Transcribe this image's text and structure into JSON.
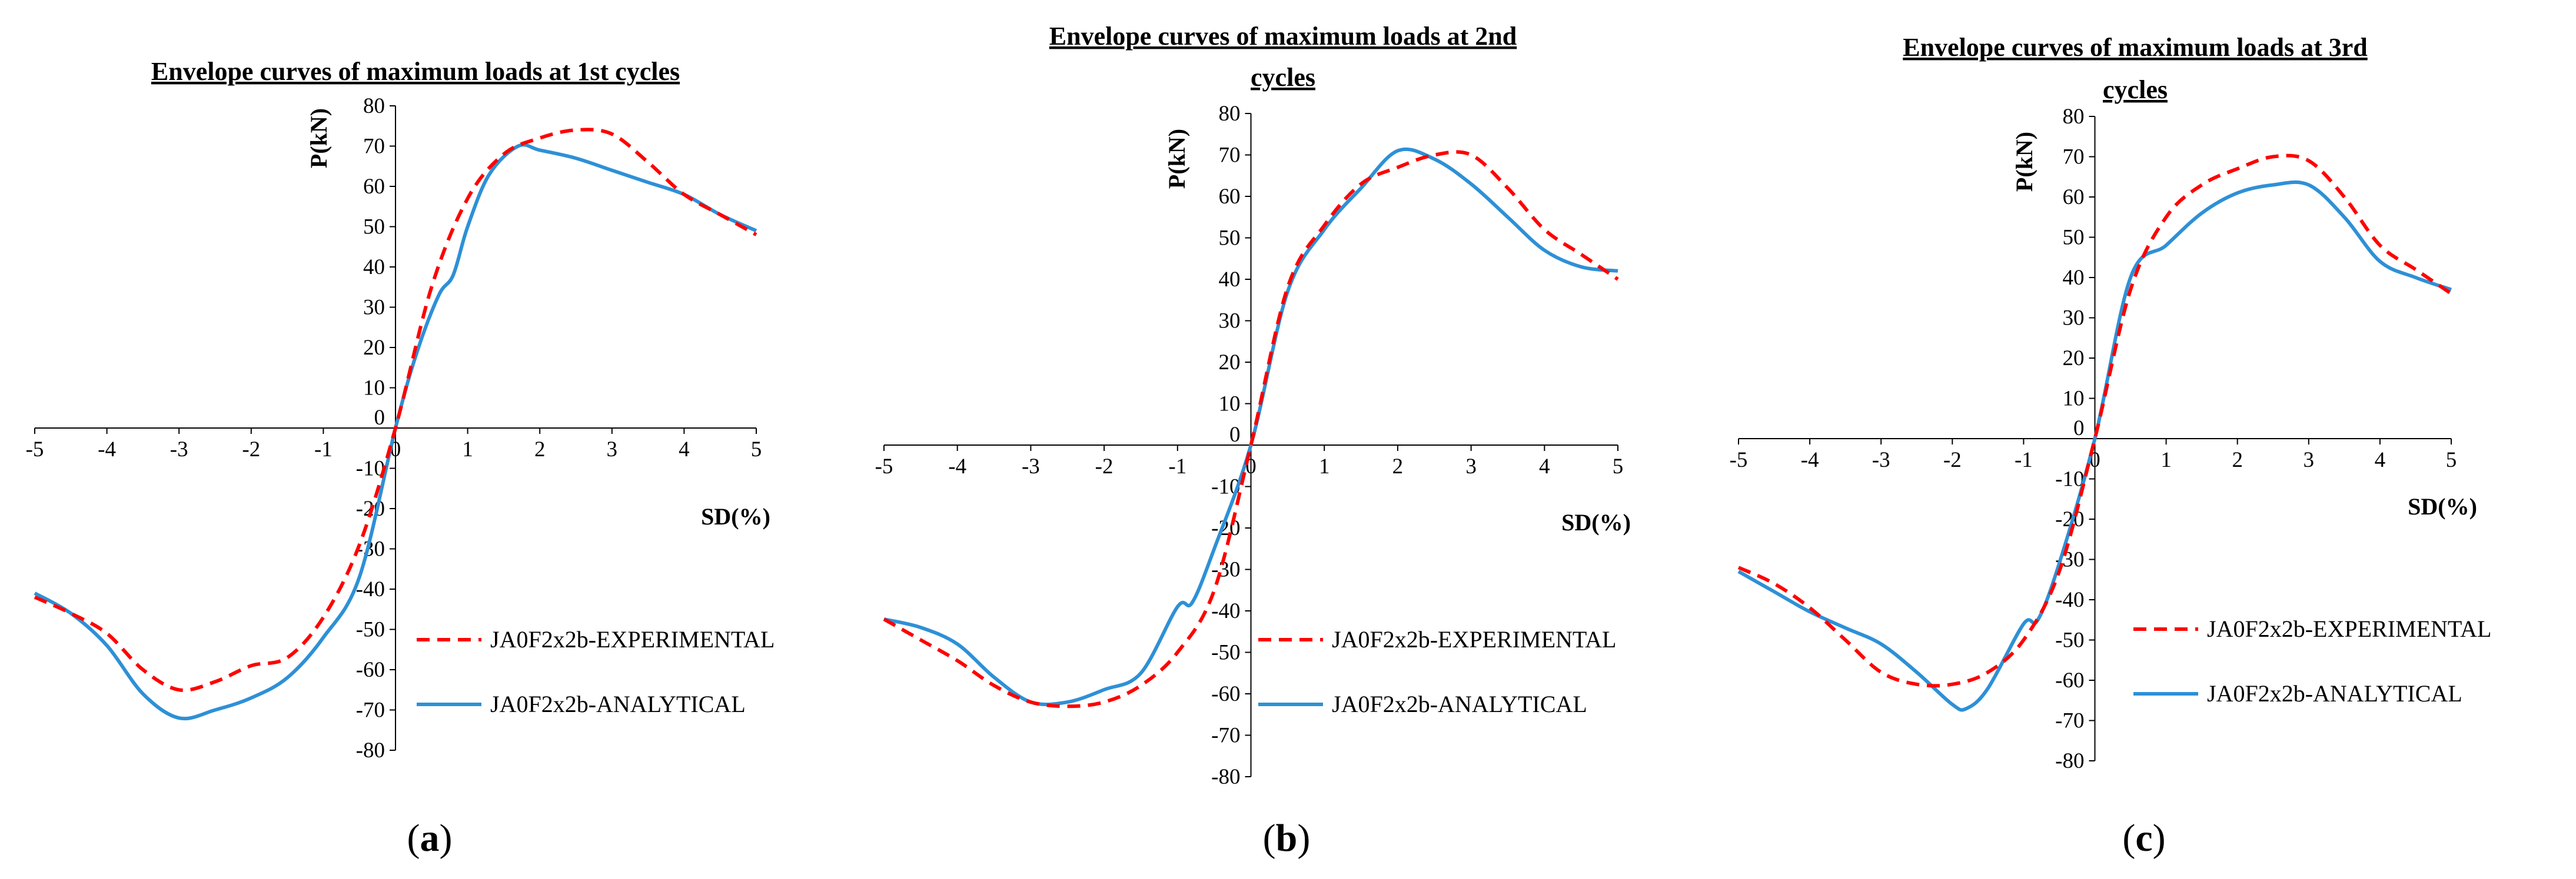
{
  "figure": {
    "captions": [
      {
        "open": "(",
        "letter": "a",
        "close": ")"
      },
      {
        "open": "(",
        "letter": "b",
        "close": ")"
      },
      {
        "open": "(",
        "letter": "c",
        "close": ")"
      }
    ]
  },
  "colors": {
    "experimental": "#ff0000",
    "analytical": "#2e90d6",
    "axis": "#000000"
  },
  "chart_data": [
    {
      "type": "line",
      "title": [
        "Envelope curves of maximum loads at 1st cycles"
      ],
      "xlabel": "SD(%)",
      "ylabel": "P(kN)",
      "xlim": [
        -5,
        5
      ],
      "ylim": [
        -80,
        80
      ],
      "xticks": [
        -5,
        -4,
        -3,
        -2,
        -1,
        0,
        1,
        2,
        3,
        4,
        5
      ],
      "yticks": [
        -80,
        -70,
        -60,
        -50,
        -40,
        -30,
        -20,
        -10,
        0,
        10,
        20,
        30,
        40,
        50,
        60,
        70,
        80
      ],
      "series": [
        {
          "name": "JA0F2x2b-EXPERIMENTAL",
          "style": "dashed",
          "color": "#ff0000",
          "x": [
            -5,
            -4.5,
            -4,
            -3.5,
            -3,
            -2.5,
            -2,
            -1.5,
            -1,
            -0.5,
            0,
            0.5,
            1,
            1.5,
            2,
            2.5,
            3,
            3.5,
            4,
            4.5,
            5
          ],
          "y": [
            -42,
            -46,
            -51,
            -60,
            -65,
            -63,
            -59,
            -57,
            -47,
            -29,
            0,
            35,
            57,
            68,
            72,
            74,
            73,
            66,
            58,
            53,
            48
          ]
        },
        {
          "name": "JA0F2x2b-ANALYTICAL",
          "style": "solid",
          "color": "#2e90d6",
          "x": [
            -5,
            -4.5,
            -4,
            -3.5,
            -3,
            -2.5,
            -2,
            -1.5,
            -1,
            -0.5,
            0,
            0.3,
            0.6,
            0.8,
            1,
            1.3,
            1.7,
            2,
            2.5,
            3,
            3.5,
            4,
            4.5,
            5
          ],
          "y": [
            -41,
            -46,
            -54,
            -66,
            -72,
            -70,
            -67,
            -62,
            -52,
            -37,
            0,
            19,
            33,
            38,
            50,
            63,
            70,
            69,
            67,
            64,
            61,
            58,
            53,
            49
          ]
        }
      ]
    },
    {
      "type": "line",
      "title": [
        "Envelope curves of maximum loads at 2nd",
        "cycles"
      ],
      "xlabel": "SD(%)",
      "ylabel": "P(kN)",
      "xlim": [
        -5,
        5
      ],
      "ylim": [
        -80,
        80
      ],
      "xticks": [
        -5,
        -4,
        -3,
        -2,
        -1,
        0,
        1,
        2,
        3,
        4,
        5
      ],
      "yticks": [
        -80,
        -70,
        -60,
        -50,
        -40,
        -30,
        -20,
        -10,
        0,
        10,
        20,
        30,
        40,
        50,
        60,
        70,
        80
      ],
      "series": [
        {
          "name": "JA0F2x2b-EXPERIMENTAL",
          "style": "dashed",
          "color": "#ff0000",
          "x": [
            -5,
            -4.5,
            -4,
            -3.5,
            -3,
            -2.5,
            -2,
            -1.5,
            -1,
            -0.5,
            0,
            0.5,
            1,
            1.5,
            2,
            2.5,
            3,
            3.5,
            4,
            4.5,
            5
          ],
          "y": [
            -42,
            -47,
            -52,
            -58,
            -62,
            -63,
            -62,
            -58,
            -50,
            -35,
            0,
            38,
            53,
            63,
            67,
            70,
            70,
            62,
            52,
            46,
            40
          ]
        },
        {
          "name": "JA0F2x2b-ANALYTICAL",
          "style": "solid",
          "color": "#2e90d6",
          "x": [
            -5,
            -4.5,
            -4,
            -3.5,
            -3,
            -2.5,
            -2,
            -1.5,
            -1,
            -0.8,
            -0.5,
            0,
            0.5,
            1,
            1.5,
            2,
            2.5,
            3,
            3.5,
            4,
            4.5,
            5
          ],
          "y": [
            -42,
            -44,
            -48,
            -56,
            -62,
            -62,
            -59,
            -55,
            -39,
            -38,
            -25,
            0,
            37,
            52,
            62,
            71,
            69,
            63,
            55,
            47,
            43,
            42
          ]
        }
      ]
    },
    {
      "type": "line",
      "title": [
        "Envelope curves of maximum loads at 3rd",
        "cycles"
      ],
      "xlabel": "SD(%)",
      "ylabel": "P(kN)",
      "xlim": [
        -5,
        5
      ],
      "ylim": [
        -80,
        80
      ],
      "xticks": [
        -5,
        -4,
        -3,
        -2,
        -1,
        0,
        1,
        2,
        3,
        4,
        5
      ],
      "yticks": [
        -80,
        -70,
        -60,
        -50,
        -40,
        -30,
        -20,
        -10,
        0,
        10,
        20,
        30,
        40,
        50,
        60,
        70,
        80
      ],
      "series": [
        {
          "name": "JA0F2x2b-EXPERIMENTAL",
          "style": "dashed",
          "color": "#ff0000",
          "x": [
            -5,
            -4.5,
            -4,
            -3.5,
            -3,
            -2.5,
            -2,
            -1.5,
            -1,
            -0.5,
            0,
            0.5,
            1,
            1.5,
            2,
            2.5,
            3,
            3.5,
            4,
            4.5,
            5
          ],
          "y": [
            -32,
            -36,
            -42,
            -50,
            -58,
            -61,
            -61,
            -58,
            -50,
            -33,
            0,
            37,
            55,
            63,
            67,
            70,
            69,
            60,
            48,
            42,
            36
          ]
        },
        {
          "name": "JA0F2x2b-ANALYTICAL",
          "style": "solid",
          "color": "#2e90d6",
          "x": [
            -5,
            -4.5,
            -4,
            -3.5,
            -3,
            -2.5,
            -2,
            -1.8,
            -1.5,
            -1,
            -0.8,
            -0.5,
            0,
            0.5,
            1,
            1.5,
            2,
            2.5,
            3,
            3.5,
            4,
            4.5,
            5
          ],
          "y": [
            -33,
            -38,
            -43,
            -47,
            -51,
            -58,
            -66,
            -67,
            -62,
            -46,
            -45,
            -31,
            0,
            40,
            48,
            56,
            61,
            63,
            63,
            55,
            44,
            40,
            37
          ]
        }
      ]
    }
  ]
}
